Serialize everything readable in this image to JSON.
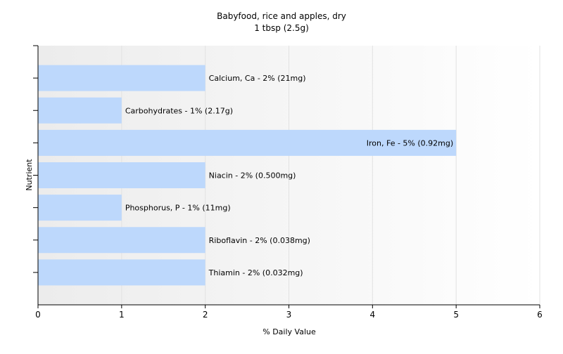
{
  "chart_data": {
    "type": "bar",
    "orientation": "horizontal",
    "title": "Babyfood, rice and apples, dry",
    "subtitle": "1 tbsp (2.5g)",
    "xlabel": "% Daily Value",
    "ylabel": "Nutrient",
    "xlim": [
      0,
      6
    ],
    "xticks": [
      "0",
      "1",
      "2",
      "3",
      "4",
      "5",
      "6"
    ],
    "grid": true,
    "bar_color": "#bdd8fc",
    "categories": [
      "Calcium, Ca",
      "Carbohydrates",
      "Iron, Fe",
      "Niacin",
      "Phosphorus, P",
      "Riboflavin",
      "Thiamin"
    ],
    "values": [
      2,
      1,
      5,
      2,
      1,
      2,
      2
    ],
    "data_labels": [
      "Calcium, Ca - 2% (21mg)",
      "Carbohydrates - 1% (2.17g)",
      "Iron, Fe - 5% (0.92mg)",
      "Niacin - 2% (0.500mg)",
      "Phosphorus, P - 1% (11mg)",
      "Riboflavin - 2% (0.038mg)",
      "Thiamin - 2% (0.032mg)"
    ]
  }
}
